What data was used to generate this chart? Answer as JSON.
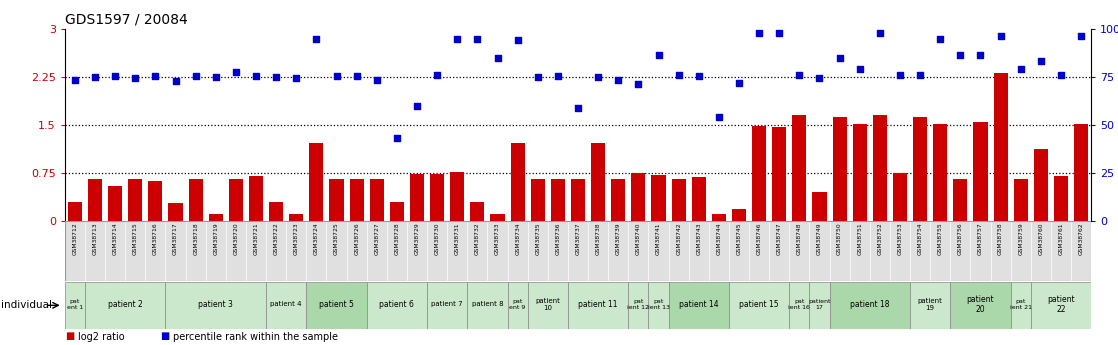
{
  "title": "GDS1597 / 20084",
  "samples": [
    "GSM38712",
    "GSM38713",
    "GSM38714",
    "GSM38715",
    "GSM38716",
    "GSM38717",
    "GSM38718",
    "GSM38719",
    "GSM38720",
    "GSM38721",
    "GSM38722",
    "GSM38723",
    "GSM38724",
    "GSM38725",
    "GSM38726",
    "GSM38727",
    "GSM38728",
    "GSM38729",
    "GSM38730",
    "GSM38731",
    "GSM38732",
    "GSM38733",
    "GSM38734",
    "GSM38735",
    "GSM38736",
    "GSM38737",
    "GSM38738",
    "GSM38739",
    "GSM38740",
    "GSM38741",
    "GSM38742",
    "GSM38743",
    "GSM38744",
    "GSM38745",
    "GSM38746",
    "GSM38747",
    "GSM38748",
    "GSM38749",
    "GSM38750",
    "GSM38751",
    "GSM38752",
    "GSM38753",
    "GSM38754",
    "GSM38755",
    "GSM38756",
    "GSM38757",
    "GSM38758",
    "GSM38759",
    "GSM38760",
    "GSM38761",
    "GSM38762"
  ],
  "log2_ratio": [
    0.3,
    0.65,
    0.55,
    0.65,
    0.63,
    0.28,
    0.65,
    0.1,
    0.65,
    0.7,
    0.3,
    0.1,
    1.22,
    0.65,
    0.65,
    0.65,
    0.3,
    0.73,
    0.73,
    0.77,
    0.3,
    0.1,
    1.22,
    0.65,
    0.65,
    0.65,
    1.22,
    0.65,
    0.75,
    0.72,
    0.65,
    0.68,
    0.1,
    0.18,
    1.48,
    1.47,
    1.65,
    0.45,
    1.62,
    1.52,
    1.65,
    0.75,
    1.62,
    1.52,
    0.65,
    1.55,
    2.32,
    0.65,
    1.12,
    0.7,
    1.52
  ],
  "percentile": [
    2.2,
    2.25,
    2.27,
    2.24,
    2.27,
    2.19,
    2.27,
    2.25,
    2.33,
    2.27,
    2.25,
    2.23,
    2.85,
    2.27,
    2.27,
    2.2,
    1.3,
    1.8,
    2.28,
    2.85,
    2.85,
    2.55,
    2.83,
    2.25,
    2.27,
    1.77,
    2.25,
    2.2,
    2.15,
    2.6,
    2.28,
    2.27,
    1.62,
    2.16,
    2.95,
    2.95,
    2.28,
    2.23,
    2.55,
    2.38,
    2.95,
    2.28,
    2.28,
    2.85,
    2.6,
    2.6,
    2.9,
    2.38,
    2.5,
    2.28,
    2.9
  ],
  "patients": [
    {
      "label": "pat\nent 1",
      "start": 0,
      "end": 1,
      "color": "#cce8cc"
    },
    {
      "label": "patient 2",
      "start": 1,
      "end": 5,
      "color": "#cce8cc"
    },
    {
      "label": "patient 3",
      "start": 5,
      "end": 10,
      "color": "#cce8cc"
    },
    {
      "label": "patient 4",
      "start": 10,
      "end": 12,
      "color": "#cce8cc"
    },
    {
      "label": "patient 5",
      "start": 12,
      "end": 15,
      "color": "#aad8aa"
    },
    {
      "label": "patient 6",
      "start": 15,
      "end": 18,
      "color": "#cce8cc"
    },
    {
      "label": "patient 7",
      "start": 18,
      "end": 20,
      "color": "#cce8cc"
    },
    {
      "label": "patient 8",
      "start": 20,
      "end": 22,
      "color": "#cce8cc"
    },
    {
      "label": "pat\nent 9",
      "start": 22,
      "end": 23,
      "color": "#cce8cc"
    },
    {
      "label": "patient\n10",
      "start": 23,
      "end": 25,
      "color": "#cce8cc"
    },
    {
      "label": "patient 11",
      "start": 25,
      "end": 28,
      "color": "#cce8cc"
    },
    {
      "label": "pat\nient 12",
      "start": 28,
      "end": 29,
      "color": "#cce8cc"
    },
    {
      "label": "pat\nient 13",
      "start": 29,
      "end": 30,
      "color": "#cce8cc"
    },
    {
      "label": "patient 14",
      "start": 30,
      "end": 33,
      "color": "#aad8aa"
    },
    {
      "label": "patient 15",
      "start": 33,
      "end": 36,
      "color": "#cce8cc"
    },
    {
      "label": "pat\nient 16",
      "start": 36,
      "end": 37,
      "color": "#cce8cc"
    },
    {
      "label": "patient\n17",
      "start": 37,
      "end": 38,
      "color": "#cce8cc"
    },
    {
      "label": "patient 18",
      "start": 38,
      "end": 42,
      "color": "#aad8aa"
    },
    {
      "label": "patient\n19",
      "start": 42,
      "end": 44,
      "color": "#cce8cc"
    },
    {
      "label": "patient\n20",
      "start": 44,
      "end": 47,
      "color": "#aad8aa"
    },
    {
      "label": "pat\nient 21",
      "start": 47,
      "end": 48,
      "color": "#cce8cc"
    },
    {
      "label": "patient\n22",
      "start": 48,
      "end": 51,
      "color": "#cce8cc"
    }
  ],
  "bar_color": "#cc0000",
  "scatter_color": "#0000cc",
  "left_yticks": [
    0,
    0.75,
    1.5,
    2.25,
    3.0
  ],
  "left_yticklabels": [
    "0",
    "0.75",
    "1.5",
    "2.25",
    "3"
  ],
  "right_yticklabels": [
    "0",
    "25",
    "50",
    "75",
    "100%"
  ],
  "hlines": [
    0.75,
    1.5,
    2.25
  ],
  "ylim": [
    0,
    3.0
  ]
}
